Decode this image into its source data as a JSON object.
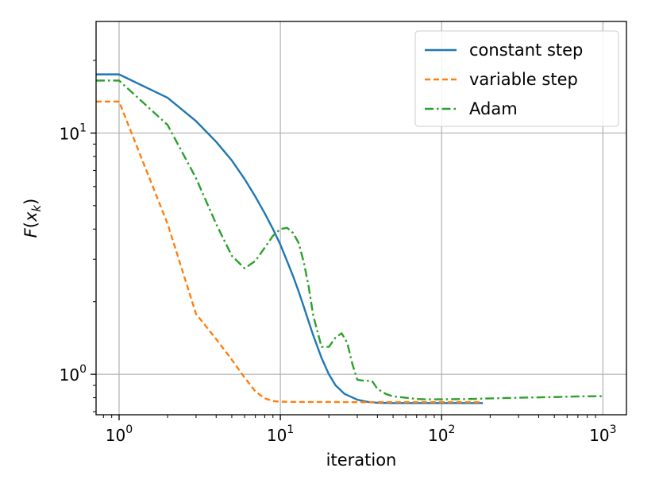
{
  "chart_data": {
    "type": "line",
    "xlabel": "iteration",
    "ylabel": "F(x_k)",
    "xscale": "log",
    "yscale": "log",
    "xlim": [
      0.72,
      1400
    ],
    "ylim": [
      0.68,
      29
    ],
    "grid": true,
    "legend_placement": "top-right",
    "x_ticks": [
      {
        "base": "10",
        "exp": "0",
        "value": 1
      },
      {
        "base": "10",
        "exp": "1",
        "value": 10
      },
      {
        "base": "10",
        "exp": "2",
        "value": 100
      },
      {
        "base": "10",
        "exp": "3",
        "value": 1000
      }
    ],
    "y_ticks": [
      {
        "base": "10",
        "exp": "0",
        "value": 1
      },
      {
        "base": "10",
        "exp": "1",
        "value": 10
      }
    ],
    "series": [
      {
        "name": "constant step",
        "color": "#1f77b4",
        "style": "solid",
        "x": [
          0.72,
          1,
          2,
          3,
          4,
          5,
          6,
          7,
          8,
          9,
          10,
          11,
          12,
          13,
          14,
          15,
          16,
          18,
          20,
          22,
          25,
          30,
          35,
          40,
          50,
          60,
          80,
          100,
          150,
          180
        ],
        "y": [
          17.5,
          17.5,
          14.0,
          11.2,
          9.2,
          7.7,
          6.45,
          5.45,
          4.65,
          4.0,
          3.45,
          2.95,
          2.55,
          2.2,
          1.9,
          1.65,
          1.45,
          1.17,
          1.0,
          0.9,
          0.83,
          0.785,
          0.768,
          0.762,
          0.76,
          0.76,
          0.76,
          0.76,
          0.76,
          0.76
        ]
      },
      {
        "name": "variable step",
        "color": "#ff7f0e",
        "style": "dashed",
        "x": [
          0.72,
          1,
          2,
          3,
          4,
          5,
          6,
          7,
          8,
          9,
          10,
          12,
          15,
          20,
          30,
          50,
          100,
          180
        ],
        "y": [
          13.5,
          13.5,
          4.2,
          1.78,
          1.4,
          1.15,
          0.97,
          0.85,
          0.795,
          0.775,
          0.77,
          0.769,
          0.768,
          0.768,
          0.767,
          0.767,
          0.767,
          0.767
        ]
      },
      {
        "name": "Adam",
        "color": "#2ca02c",
        "style": "dashdot",
        "x": [
          0.72,
          1,
          2,
          3,
          4,
          5,
          6,
          7,
          8,
          9,
          10,
          11,
          12,
          13,
          14,
          15,
          16,
          18,
          20,
          22,
          24,
          26,
          28,
          30,
          33,
          37,
          40,
          45,
          50,
          60,
          70,
          80,
          100,
          150,
          200,
          300,
          500,
          700,
          1000
        ],
        "y": [
          16.5,
          16.5,
          10.8,
          6.5,
          4.2,
          3.1,
          2.75,
          2.95,
          3.35,
          3.75,
          4.0,
          4.05,
          3.85,
          3.5,
          2.9,
          2.3,
          1.75,
          1.3,
          1.3,
          1.42,
          1.48,
          1.35,
          1.1,
          0.95,
          0.94,
          0.94,
          0.87,
          0.83,
          0.81,
          0.8,
          0.79,
          0.788,
          0.788,
          0.79,
          0.795,
          0.8,
          0.805,
          0.81,
          0.812
        ]
      }
    ]
  }
}
